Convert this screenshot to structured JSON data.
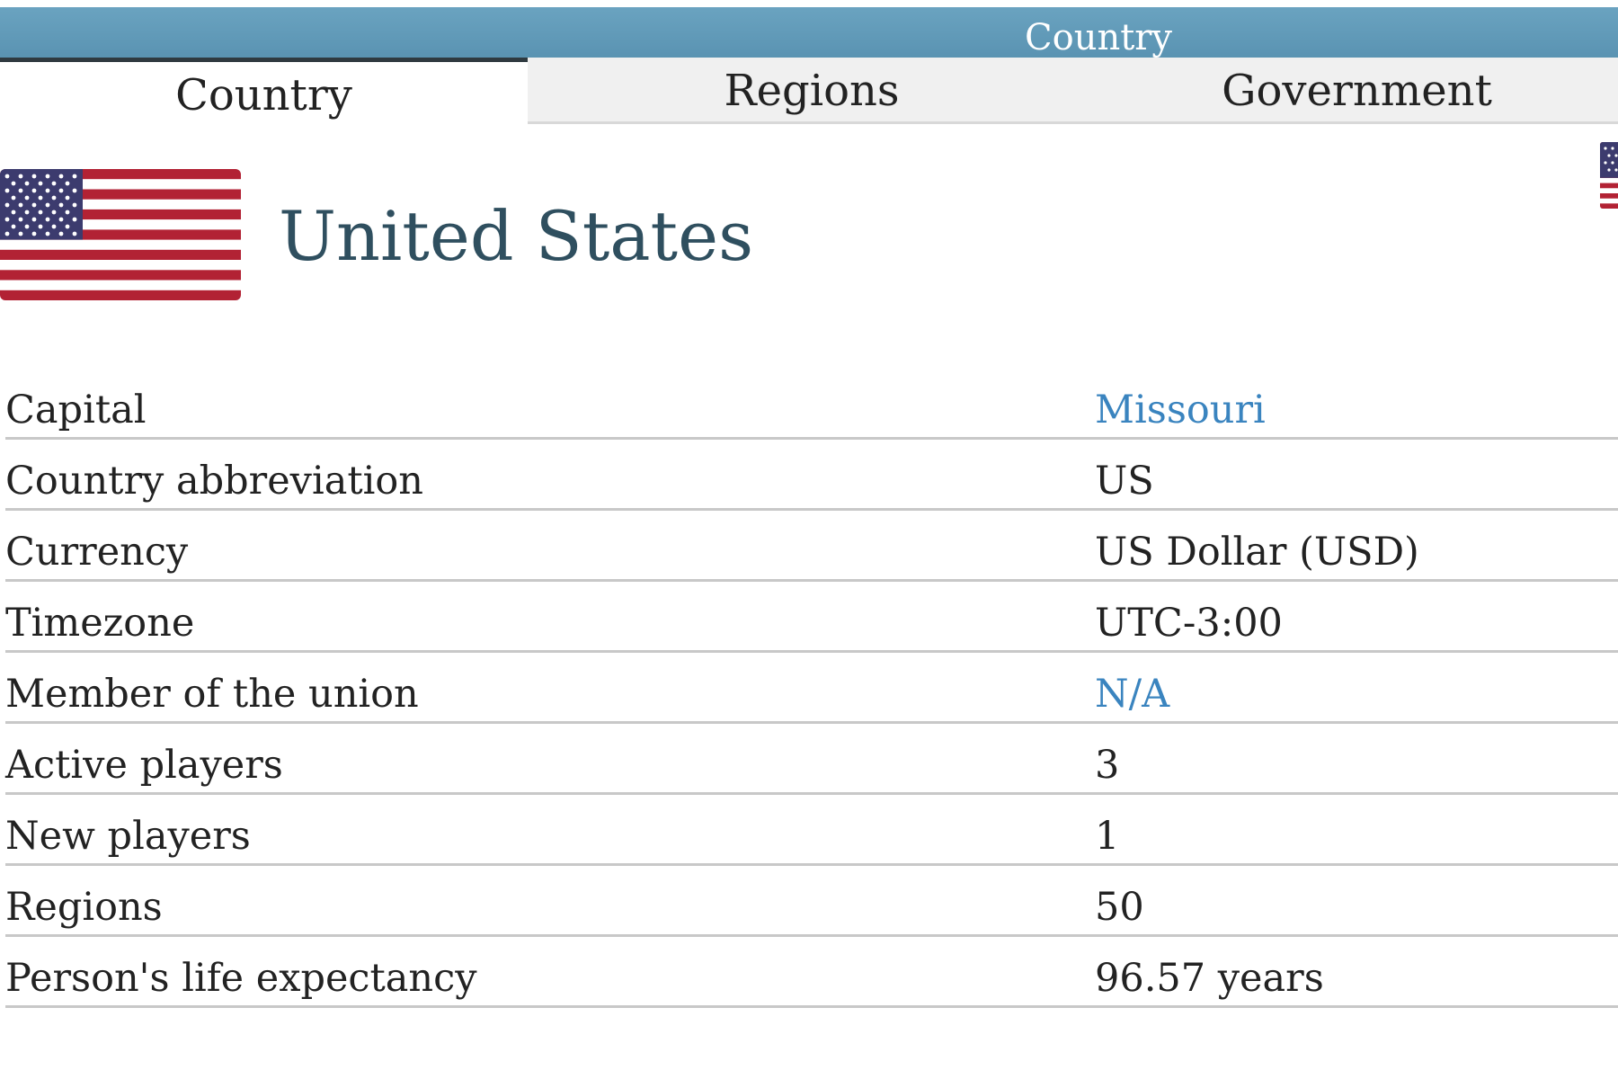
{
  "header": {
    "title": "Country"
  },
  "tabs": [
    {
      "label": "Country",
      "active": true
    },
    {
      "label": "Regions",
      "active": false
    },
    {
      "label": "Government",
      "active": false
    }
  ],
  "country": {
    "name": "United States",
    "flag_icon": "us-flag-icon"
  },
  "info": {
    "rows": [
      {
        "label": "Capital",
        "value": "Missouri",
        "link": true
      },
      {
        "label": "Country abbreviation",
        "value": "US",
        "link": false
      },
      {
        "label": "Currency",
        "value": "US Dollar (USD)",
        "link": false
      },
      {
        "label": "Timezone",
        "value": "UTC-3:00",
        "link": false
      },
      {
        "label": "Member of the union",
        "value": "N/A",
        "link": true
      },
      {
        "label": "Active players",
        "value": "3",
        "link": false
      },
      {
        "label": "New players",
        "value": "1",
        "link": false
      },
      {
        "label": "Regions",
        "value": "50",
        "link": false
      },
      {
        "label": "Person's life expectancy",
        "value": "96.57 years",
        "link": false
      }
    ]
  },
  "colors": {
    "header": "#6aa3c0",
    "link": "#3a84bf",
    "flag_red": "#b22234",
    "flag_blue": "#3c3b6e"
  }
}
